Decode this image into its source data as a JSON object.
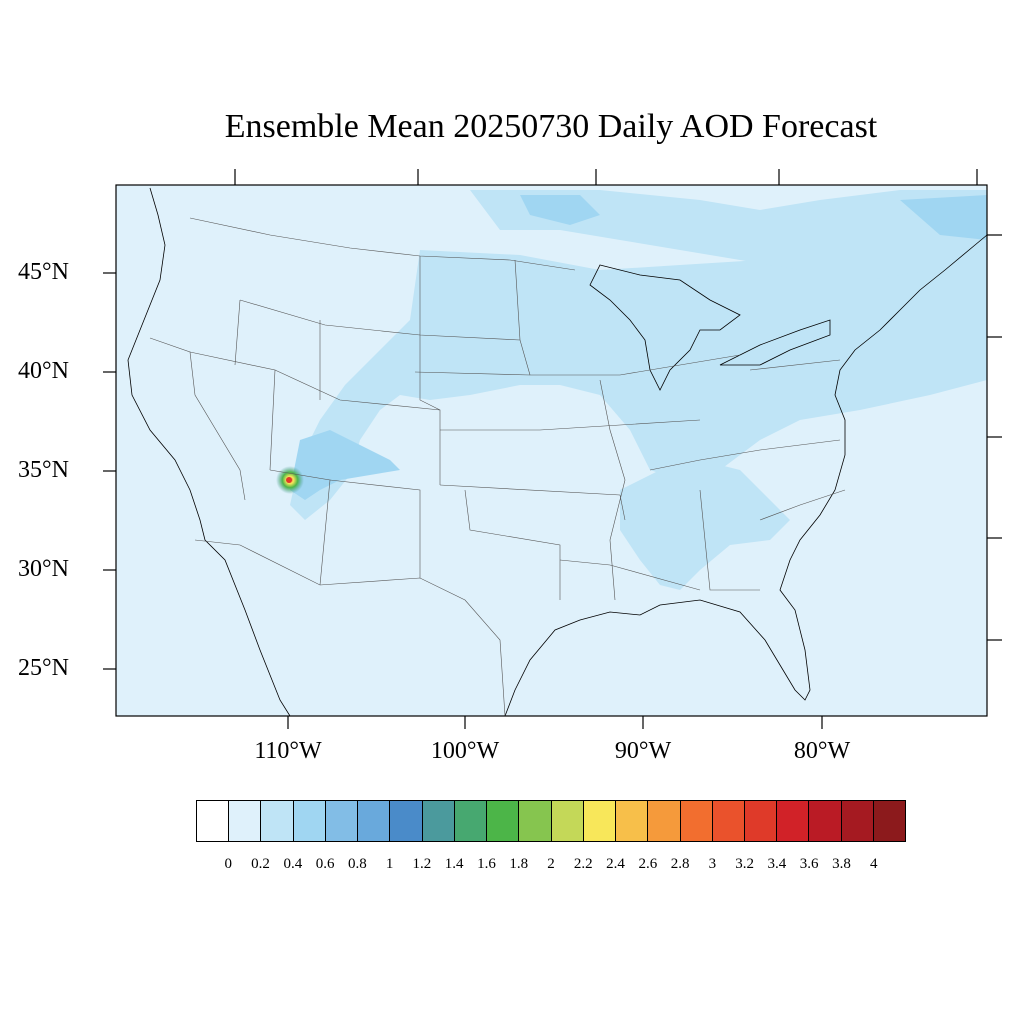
{
  "title": "Ensemble Mean 20250730 Daily AOD Forecast",
  "lat_labels": [
    "45°N",
    "40°N",
    "35°N",
    "30°N",
    "25°N"
  ],
  "lon_labels": [
    "110°W",
    "100°W",
    "90°W",
    "80°W"
  ],
  "colorbar": {
    "colors": [
      "#ffffff",
      "#dff1fb",
      "#bfe4f6",
      "#a0d6f2",
      "#82bde6",
      "#69a9dc",
      "#4a8bc9",
      "#4b9a9d",
      "#47a870",
      "#4cb548",
      "#86c54f",
      "#c4d858",
      "#f8e75a",
      "#f7bf4a",
      "#f59a3b",
      "#f26e2f",
      "#ea522c",
      "#df3a29",
      "#d12228",
      "#ba1b25",
      "#a51a21",
      "#8c1a1c"
    ],
    "labels": [
      "0",
      "0.2",
      "0.4",
      "0.6",
      "0.8",
      "1",
      "1.2",
      "1.4",
      "1.6",
      "1.8",
      "2",
      "2.2",
      "2.4",
      "2.6",
      "2.8",
      "3",
      "3.2",
      "3.4",
      "3.6",
      "3.8",
      "4"
    ]
  },
  "colors": {
    "map_background": "#dff1fb",
    "aod_band_light": "#bfe4f6",
    "aod_band_mid": "#a0d6f2",
    "hotspot_green": "#4cb548",
    "hotspot_yellow": "#f8e75a",
    "hotspot_red": "#df3a29"
  }
}
